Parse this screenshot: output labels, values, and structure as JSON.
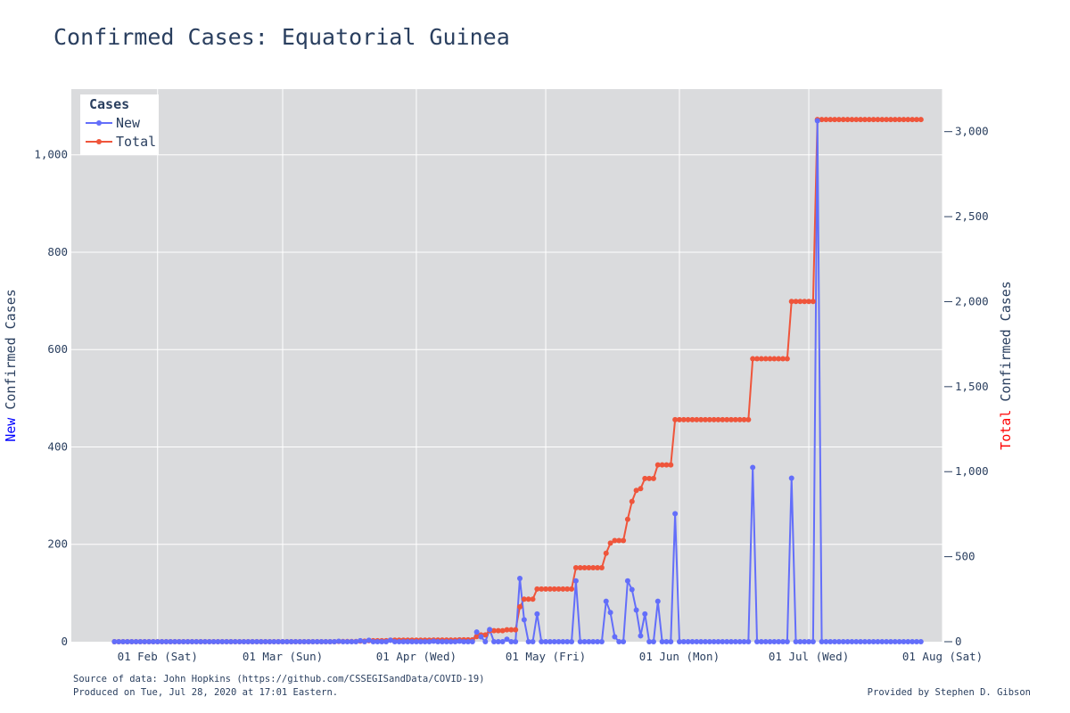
{
  "footer": {
    "source": "Source of data: John Hopkins (https://github.com/CSSEGISandData/COVID-19)",
    "produced": "Produced on Tue, Jul 28, 2020 at 17:01 Eastern.",
    "provided": "Provided by Stephen D. Gibson"
  },
  "chart_data": {
    "type": "line",
    "title": "Confirmed Cases: Equatorial Guinea",
    "y_title_highlight": "New",
    "y_title_rest": " Confirmed Cases",
    "y_title_highlight_color": "#0000ff",
    "y2_title_highlight": "Total",
    "y2_title_rest": " Confirmed Cases",
    "y2_title_highlight_color": "#ff0000",
    "legend": {
      "title": "Cases",
      "placement": "top-left"
    },
    "plot_bg": "#dadbdd",
    "grid": true,
    "x_range": [
      "2020-01-12",
      "2020-08-01"
    ],
    "x_ticks": [
      "2020-02-01",
      "2020-03-01",
      "2020-04-01",
      "2020-05-01",
      "2020-06-01",
      "2020-07-01",
      "2020-08-01"
    ],
    "x_tick_labels": [
      "01 Feb (Sat)",
      "01 Mar (Sun)",
      "01 Apr (Wed)",
      "01 May (Fri)",
      "01 Jun (Mon)",
      "01 Jul (Wed)",
      "01 Aug (Sat)"
    ],
    "y_range": [
      0,
      1135
    ],
    "y_ticks": [
      0,
      200,
      400,
      600,
      800,
      1000
    ],
    "y_tick_labels": [
      "0",
      "200",
      "400",
      "600",
      "800",
      "1,000"
    ],
    "y2_range": [
      0,
      3250
    ],
    "y2_ticks": [
      0,
      500,
      1000,
      1500,
      2000,
      2500,
      3000
    ],
    "y2_tick_labels": [
      "0",
      "500",
      "1,000",
      "1,500",
      "2,000",
      "2,500",
      "3,000"
    ],
    "series": [
      {
        "name": "New",
        "color": "#636efa",
        "axis": "y",
        "points": [
          [
            "2020-01-22",
            0
          ],
          [
            "2020-03-13",
            0
          ],
          [
            "2020-03-14",
            1
          ],
          [
            "2020-03-15",
            0
          ],
          [
            "2020-03-18",
            0
          ],
          [
            "2020-03-19",
            2
          ],
          [
            "2020-03-20",
            0
          ],
          [
            "2020-03-21",
            3
          ],
          [
            "2020-03-22",
            0
          ],
          [
            "2020-03-25",
            0
          ],
          [
            "2020-03-26",
            3
          ],
          [
            "2020-03-27",
            0
          ],
          [
            "2020-04-04",
            0
          ],
          [
            "2020-04-05",
            1
          ],
          [
            "2020-04-06",
            0
          ],
          [
            "2020-04-10",
            0
          ],
          [
            "2020-04-11",
            1
          ],
          [
            "2020-04-12",
            0
          ],
          [
            "2020-04-14",
            0
          ],
          [
            "2020-04-15",
            20
          ],
          [
            "2020-04-16",
            10
          ],
          [
            "2020-04-17",
            0
          ],
          [
            "2020-04-18",
            25
          ],
          [
            "2020-04-19",
            0
          ],
          [
            "2020-04-21",
            0
          ],
          [
            "2020-04-22",
            5
          ],
          [
            "2020-04-23",
            0
          ],
          [
            "2020-04-24",
            0
          ],
          [
            "2020-04-25",
            130
          ],
          [
            "2020-04-26",
            45
          ],
          [
            "2020-04-27",
            0
          ],
          [
            "2020-04-28",
            0
          ],
          [
            "2020-04-29",
            57
          ],
          [
            "2020-04-30",
            0
          ],
          [
            "2020-05-07",
            0
          ],
          [
            "2020-05-08",
            125
          ],
          [
            "2020-05-09",
            0
          ],
          [
            "2020-05-14",
            0
          ],
          [
            "2020-05-15",
            83
          ],
          [
            "2020-05-16",
            60
          ],
          [
            "2020-05-17",
            10
          ],
          [
            "2020-05-18",
            0
          ],
          [
            "2020-05-19",
            0
          ],
          [
            "2020-05-20",
            125
          ],
          [
            "2020-05-21",
            107
          ],
          [
            "2020-05-22",
            65
          ],
          [
            "2020-05-23",
            12
          ],
          [
            "2020-05-24",
            57
          ],
          [
            "2020-05-25",
            0
          ],
          [
            "2020-05-26",
            0
          ],
          [
            "2020-05-27",
            83
          ],
          [
            "2020-05-28",
            0
          ],
          [
            "2020-05-30",
            0
          ],
          [
            "2020-05-31",
            263
          ],
          [
            "2020-06-01",
            0
          ],
          [
            "2020-06-17",
            0
          ],
          [
            "2020-06-18",
            358
          ],
          [
            "2020-06-19",
            0
          ],
          [
            "2020-06-26",
            0
          ],
          [
            "2020-06-27",
            336
          ],
          [
            "2020-06-28",
            0
          ],
          [
            "2020-07-02",
            0
          ],
          [
            "2020-07-03",
            1070
          ],
          [
            "2020-07-04",
            0
          ],
          [
            "2020-07-27",
            0
          ]
        ]
      },
      {
        "name": "Total",
        "color": "#ef553b",
        "axis": "y2",
        "points": [
          [
            "2020-01-22",
            0
          ],
          [
            "2020-03-13",
            0
          ],
          [
            "2020-03-14",
            1
          ],
          [
            "2020-03-18",
            1
          ],
          [
            "2020-03-19",
            3
          ],
          [
            "2020-03-20",
            3
          ],
          [
            "2020-03-21",
            6
          ],
          [
            "2020-03-25",
            6
          ],
          [
            "2020-03-26",
            9
          ],
          [
            "2020-04-04",
            9
          ],
          [
            "2020-04-05",
            10
          ],
          [
            "2020-04-10",
            10
          ],
          [
            "2020-04-11",
            11
          ],
          [
            "2020-04-14",
            11
          ],
          [
            "2020-04-15",
            30
          ],
          [
            "2020-04-16",
            40
          ],
          [
            "2020-04-17",
            40
          ],
          [
            "2020-04-18",
            65
          ],
          [
            "2020-04-21",
            65
          ],
          [
            "2020-04-22",
            70
          ],
          [
            "2020-04-24",
            70
          ],
          [
            "2020-04-25",
            205
          ],
          [
            "2020-04-26",
            250
          ],
          [
            "2020-04-28",
            250
          ],
          [
            "2020-04-29",
            310
          ],
          [
            "2020-05-07",
            310
          ],
          [
            "2020-05-08",
            435
          ],
          [
            "2020-05-14",
            435
          ],
          [
            "2020-05-15",
            520
          ],
          [
            "2020-05-16",
            580
          ],
          [
            "2020-05-17",
            595
          ],
          [
            "2020-05-19",
            595
          ],
          [
            "2020-05-20",
            720
          ],
          [
            "2020-05-21",
            825
          ],
          [
            "2020-05-22",
            890
          ],
          [
            "2020-05-23",
            900
          ],
          [
            "2020-05-24",
            960
          ],
          [
            "2020-05-26",
            960
          ],
          [
            "2020-05-27",
            1040
          ],
          [
            "2020-05-30",
            1040
          ],
          [
            "2020-05-31",
            1306
          ],
          [
            "2020-06-17",
            1306
          ],
          [
            "2020-06-18",
            1664
          ],
          [
            "2020-06-26",
            1664
          ],
          [
            "2020-06-27",
            2001
          ],
          [
            "2020-07-02",
            2001
          ],
          [
            "2020-07-03",
            3071
          ],
          [
            "2020-07-27",
            3071
          ]
        ]
      }
    ]
  }
}
